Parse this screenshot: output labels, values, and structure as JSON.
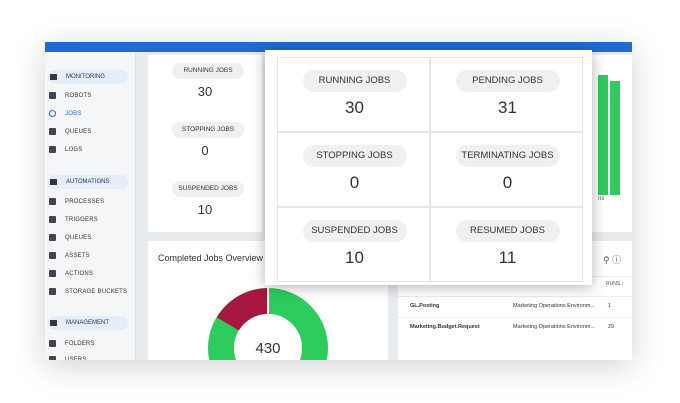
{
  "sidebar": {
    "sections": [
      {
        "title": "MONITORING",
        "items": [
          "ROBOTS",
          "JOBS",
          "QUEUES",
          "LOGS"
        ]
      },
      {
        "title": "AUTOMATIONS",
        "items": [
          "PROCESSES",
          "TRIGGERS",
          "QUEUES",
          "ASSETS",
          "ACTIONS",
          "STORAGE BUCKETS"
        ]
      },
      {
        "title": "MANAGEMENT",
        "items": [
          "FOLDERS",
          "USERS"
        ]
      }
    ]
  },
  "jobs_card": [
    {
      "label": "RUNNING JOBS",
      "value": "30"
    },
    {
      "label": "STOPPING JOBS",
      "value": "0"
    },
    {
      "label": "SUSPENDED JOBS",
      "value": "10"
    }
  ],
  "completed": {
    "title": "Completed Jobs Overview",
    "total": "430"
  },
  "side_text": "ns",
  "table": {
    "header": "RUNS ↕",
    "rows": [
      [
        "GL.Posting",
        "Marketing Operations Environm...",
        "1"
      ],
      [
        "Marketing.Budget.Request",
        "Marketing Operations Environm...",
        "29"
      ]
    ]
  },
  "popup": [
    {
      "label": "RUNNING JOBS",
      "value": "30"
    },
    {
      "label": "PENDING JOBS",
      "value": "31"
    },
    {
      "label": "STOPPING JOBS",
      "value": "0"
    },
    {
      "label": "TERMINATING JOBS",
      "value": "0"
    },
    {
      "label": "SUSPENDED JOBS",
      "value": "10"
    },
    {
      "label": "RESUMED JOBS",
      "value": "11"
    }
  ]
}
